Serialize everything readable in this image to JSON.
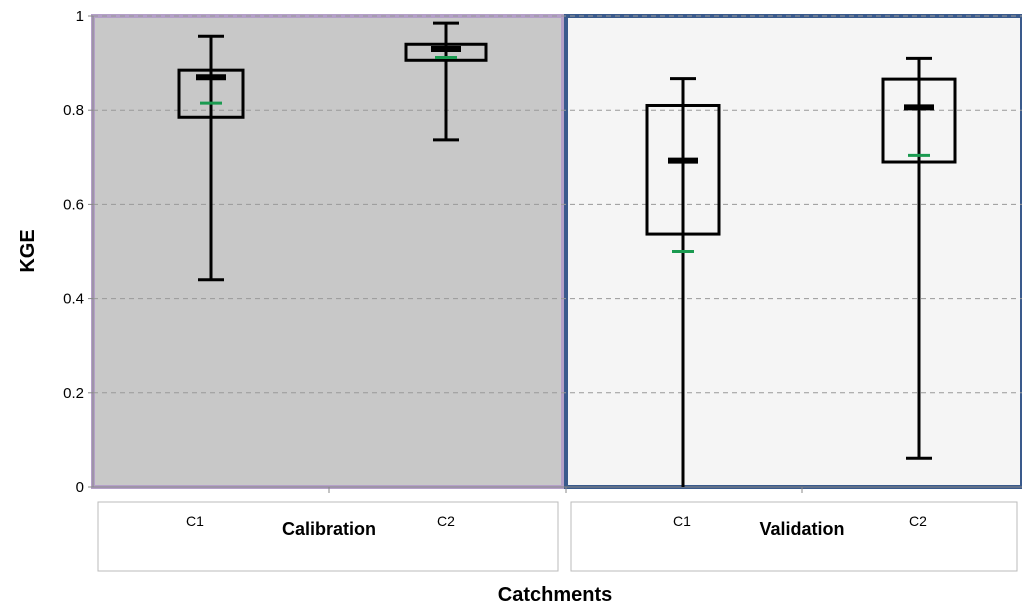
{
  "chart_data": {
    "type": "boxplot",
    "ylabel": "KGE",
    "xlabel": "Catchments",
    "ylim": [
      0,
      1
    ],
    "yticks": [
      "0",
      "0.2",
      "0.4",
      "0.6",
      "0.8",
      "1"
    ],
    "grid": "horizontal-dashed",
    "groups": [
      {
        "label": "Calibration",
        "panel_fill": "#c8c8c8",
        "panel_border": "#b4a0c8",
        "boxes": [
          {
            "category": "C1",
            "min": 0.44,
            "q1": 0.785,
            "median": 0.87,
            "q3": 0.885,
            "max": 0.957,
            "mean": 0.815
          },
          {
            "category": "C2",
            "min": 0.737,
            "q1": 0.906,
            "median": 0.93,
            "q3": 0.94,
            "max": 0.985,
            "mean": 0.912
          }
        ]
      },
      {
        "label": "Validation",
        "panel_fill": "#f5f5f5",
        "panel_border": "#3a5a8c",
        "boxes": [
          {
            "category": "C1",
            "min": 0.0,
            "q1": 0.537,
            "median": 0.693,
            "q3": 0.81,
            "max": 0.867,
            "mean": 0.5
          },
          {
            "category": "C2",
            "min": 0.061,
            "q1": 0.69,
            "median": 0.806,
            "q3": 0.866,
            "max": 0.91,
            "mean": 0.704
          }
        ]
      }
    ],
    "colors": {
      "box": "#000000",
      "median": "#000000",
      "mean": "#1a9a50",
      "grid": "#999999"
    }
  }
}
